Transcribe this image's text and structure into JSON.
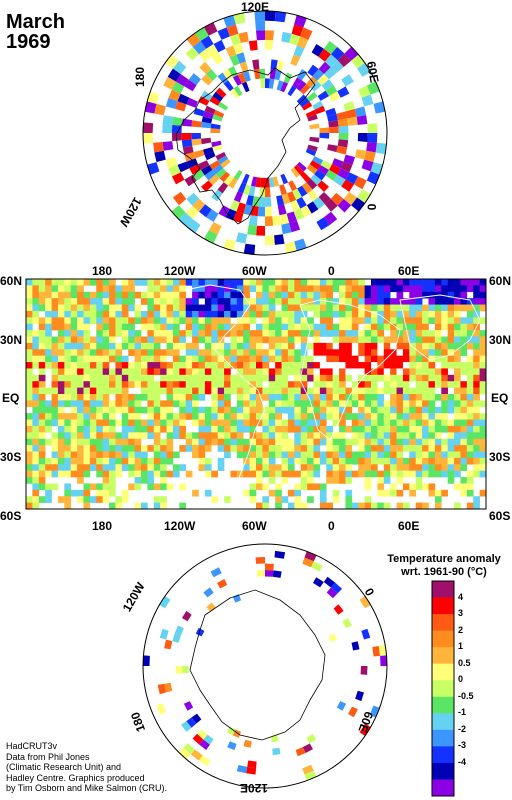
{
  "title": {
    "month": "March",
    "year": "1969"
  },
  "north_polar": {
    "labels": {
      "top": "120E",
      "left": "180",
      "right": "60E",
      "lower_right": "0",
      "lower_left": "120W"
    }
  },
  "world_map": {
    "top_lon_labels": [
      "180",
      "120W",
      "60W",
      "0",
      "60E"
    ],
    "bottom_lon_labels": [
      "180",
      "120W",
      "60W",
      "0",
      "60E"
    ],
    "left_lat_labels": [
      "60N",
      "30N",
      "EQ",
      "30S",
      "60S"
    ],
    "right_lat_labels": [
      "60N",
      "30N",
      "EQ",
      "30S",
      "60S"
    ]
  },
  "south_polar": {
    "labels": {
      "upper_left": "120W",
      "upper_right": "0",
      "lower_left": "180",
      "lower_right": "60E",
      "bottom": "120E"
    }
  },
  "legend": {
    "title_line1": "Temperature anomaly",
    "title_line2": "wrt. 1961-90  (°C)",
    "ticks": [
      "4",
      "3",
      "2",
      "1",
      "0.5",
      "0",
      "-0.5",
      "-1",
      "-2",
      "-3",
      "-4"
    ],
    "colors": [
      "#a0106a",
      "#ff0000",
      "#ff5a14",
      "#ff8c1e",
      "#ffb43c",
      "#ffff78",
      "#c8ff64",
      "#5ae664",
      "#64d2f0",
      "#3c96ff",
      "#1432ff",
      "#0000b4",
      "#8c00e6"
    ]
  },
  "credit": [
    "HadCRUT3v",
    "Data from Phil Jones",
    "(Climatic Research Unit) and",
    "Hadley Centre.  Graphics produced",
    "by Tim Osborn and Mike Salmon (CRU)."
  ]
}
